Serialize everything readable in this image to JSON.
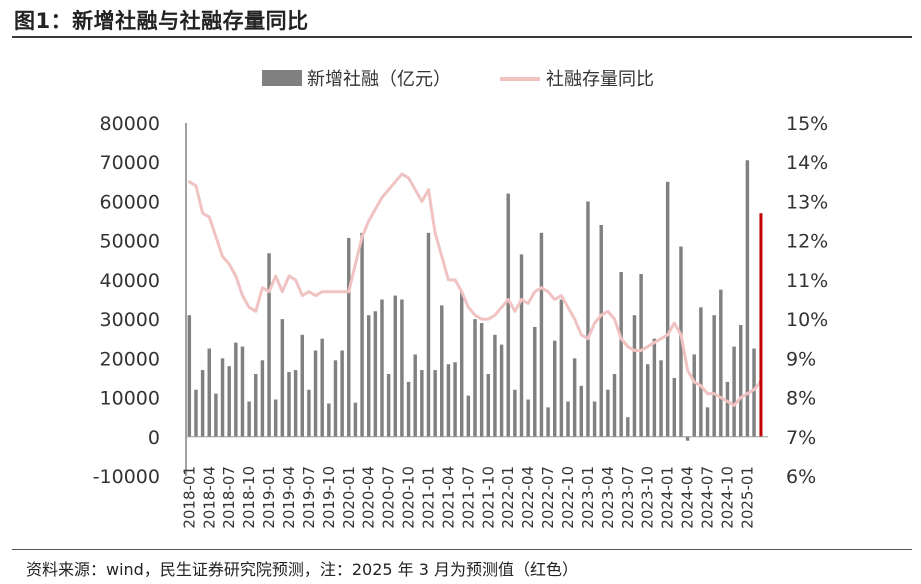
{
  "figure": {
    "title": "图1：新增社融与社融存量同比",
    "source": "资料来源：wind，民生证券研究院预测，注：2025 年 3 月为预测值（红色）"
  },
  "colors": {
    "bar": "#808080",
    "line": "#F0C2C2",
    "forecast": "#C00000",
    "axis": "#444444",
    "text": "#333333"
  },
  "chart_data": {
    "type": "bar+line",
    "title": "",
    "legend": [
      {
        "name": "新增社融（亿元）",
        "type": "bar"
      },
      {
        "name": "社融存量同比",
        "type": "line"
      }
    ],
    "legend_position": "top-center",
    "grid": false,
    "y_left": {
      "min": -10000,
      "max": 80000,
      "step": 10000,
      "ticks": [
        "-10000",
        "0",
        "10000",
        "20000",
        "30000",
        "40000",
        "50000",
        "60000",
        "70000",
        "80000"
      ]
    },
    "y_right": {
      "min": 6,
      "max": 15,
      "step": 1,
      "unit": "%",
      "ticks": [
        "6%",
        "7%",
        "8%",
        "9%",
        "10%",
        "11%",
        "12%",
        "13%",
        "14%",
        "15%"
      ]
    },
    "x_tick_labels": [
      "2018-01",
      "2018-04",
      "2018-07",
      "2018-10",
      "2019-01",
      "2019-04",
      "2019-07",
      "2019-10",
      "2020-01",
      "2020-04",
      "2020-07",
      "2020-10",
      "2021-01",
      "2021-04",
      "2021-07",
      "2021-10",
      "2022-01",
      "2022-04",
      "2022-07",
      "2022-10",
      "2023-01",
      "2023-04",
      "2023-07",
      "2023-10",
      "2024-01",
      "2024-04",
      "2024-07",
      "2024-10",
      "2025-01"
    ],
    "start_month": "2018-01",
    "series": [
      {
        "name": "新增社融（亿元）",
        "type": "bar",
        "axis": "left",
        "values": [
          31000,
          12000,
          17000,
          22500,
          11000,
          20000,
          18000,
          24000,
          23000,
          9000,
          16000,
          19500,
          46800,
          9500,
          30000,
          16500,
          17000,
          26000,
          12000,
          22000,
          25000,
          8500,
          19500,
          22000,
          50700,
          8700,
          52000,
          31000,
          32000,
          35000,
          16000,
          36000,
          35000,
          14000,
          21000,
          17000,
          52000,
          17000,
          33500,
          18500,
          19000,
          37000,
          10500,
          30000,
          29000,
          16000,
          26000,
          23500,
          62000,
          12000,
          46500,
          9500,
          28000,
          52000,
          7500,
          24500,
          35000,
          9000,
          20000,
          13000,
          60000,
          9000,
          54000,
          12000,
          16000,
          42000,
          5000,
          31000,
          41500,
          18500,
          25000,
          19500,
          65000,
          15000,
          48500,
          -1000,
          21000,
          33000,
          7500,
          31000,
          37500,
          14000,
          23000,
          28500,
          70500,
          22500
        ]
      },
      {
        "name": "社融存量同比",
        "type": "line",
        "axis": "right",
        "unit": "%",
        "values": [
          13.5,
          13.4,
          12.7,
          12.6,
          12.1,
          11.6,
          11.4,
          11.1,
          10.6,
          10.3,
          10.2,
          10.8,
          10.7,
          11.1,
          10.7,
          11.1,
          11.0,
          10.6,
          10.7,
          10.6,
          10.7,
          10.7,
          10.7,
          10.7,
          10.7,
          11.4,
          12.1,
          12.5,
          12.8,
          13.1,
          13.3,
          13.5,
          13.7,
          13.6,
          13.3,
          13.0,
          13.3,
          12.2,
          11.6,
          11.0,
          11.0,
          10.7,
          10.3,
          10.1,
          10.0,
          10.0,
          10.1,
          10.3,
          10.5,
          10.2,
          10.5,
          10.4,
          10.7,
          10.8,
          10.7,
          10.5,
          10.6,
          10.3,
          10.0,
          9.6,
          9.5,
          9.9,
          10.1,
          10.2,
          10.0,
          9.5,
          9.3,
          9.2,
          9.2,
          9.3,
          9.4,
          9.5,
          9.6,
          9.9,
          9.6,
          8.7,
          8.4,
          8.3,
          8.1,
          8.1,
          8.0,
          7.9,
          7.8,
          8.0,
          8.1,
          8.2,
          8.4
        ]
      },
      {
        "name": "2025-03 预测",
        "type": "bar",
        "axis": "left",
        "forecast_month": "2025-03",
        "value": 57000,
        "color": "#C00000"
      },
      {
        "name": "2025-03 预测",
        "type": "line",
        "axis": "right",
        "forecast_month": "2025-03",
        "value": 8.4,
        "color": "#C00000"
      }
    ]
  }
}
